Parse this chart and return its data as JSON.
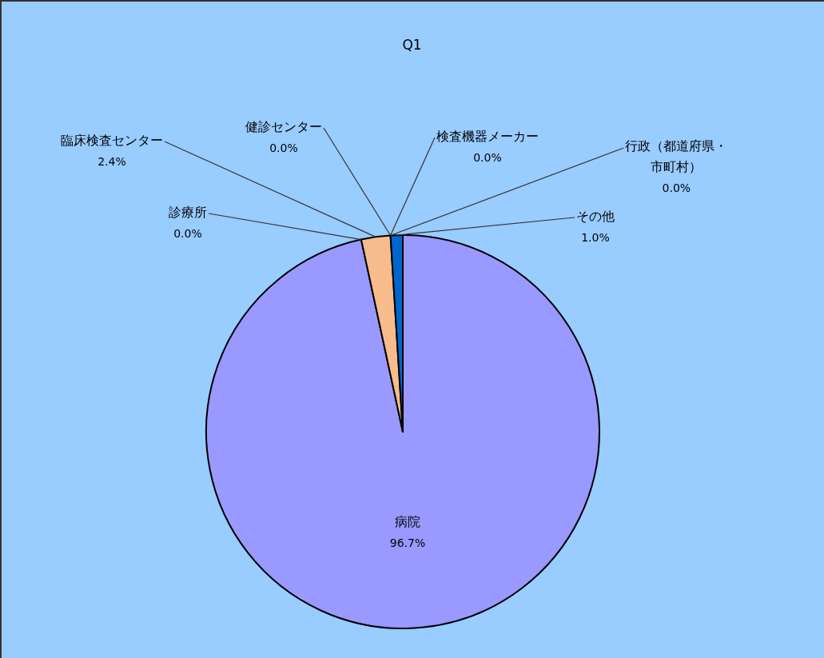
{
  "chart_data": {
    "type": "pie",
    "title": "Q1",
    "categories": [
      "病院",
      "診療所",
      "臨床検査センター",
      "健診センター",
      "検査機器メーカー",
      "行政（都道府県・市町村）",
      "その他"
    ],
    "values": [
      96.7,
      0.0,
      2.4,
      0.0,
      0.0,
      0.0,
      1.0
    ],
    "colors": [
      "#9999ff",
      "#993366",
      "#f8bb8c",
      "#ccffff",
      "#660066",
      "#ff8080",
      "#0066cc"
    ],
    "value_labels": [
      "96.7%",
      "0.0%",
      "2.4%",
      "0.0%",
      "0.0%",
      "0.0%",
      "1.0%"
    ]
  }
}
